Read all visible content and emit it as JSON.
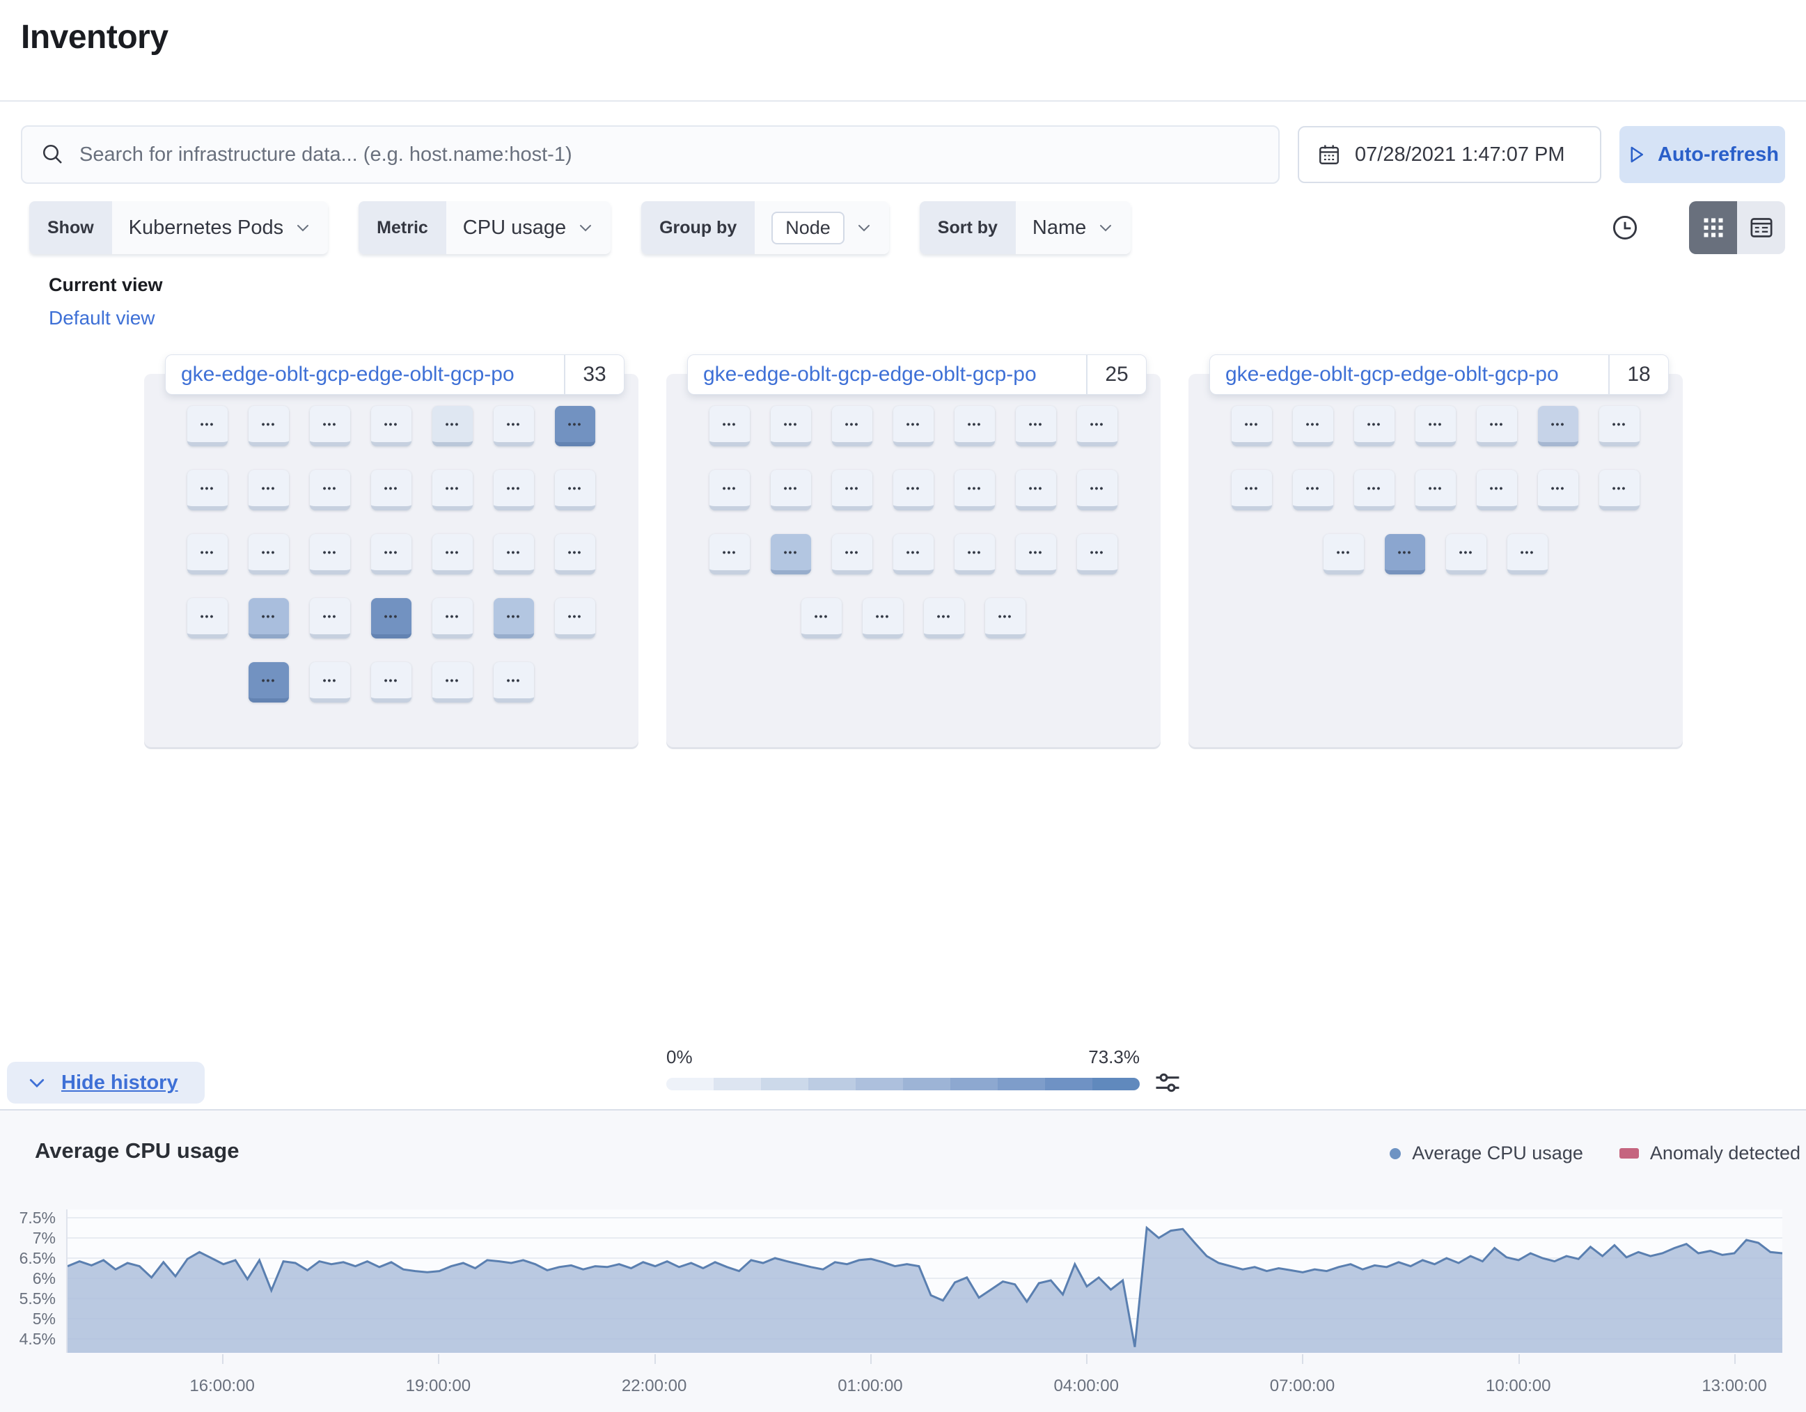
{
  "page": {
    "title": "Inventory"
  },
  "search": {
    "placeholder": "Search for infrastructure data... (e.g. host.name:host-1)"
  },
  "datepicker": {
    "value": "07/28/2021 1:47:07 PM"
  },
  "auto_refresh": {
    "label": "Auto-refresh"
  },
  "filters": [
    {
      "label": "Show",
      "value": "Kubernetes Pods",
      "badge": false
    },
    {
      "label": "Metric",
      "value": "CPU usage",
      "badge": false
    },
    {
      "label": "Group by",
      "value": "Node",
      "badge": true
    },
    {
      "label": "Sort by",
      "value": "Name",
      "badge": false
    }
  ],
  "view": {
    "heading": "Current view",
    "link": "Default view"
  },
  "waffle": {
    "tile_label": "•••",
    "palette": [
      "#eef2f9",
      "#dfe7f2",
      "#c6d3e8",
      "#b3c6e1",
      "#a9bedd",
      "#8ba6cf",
      "#7292c1"
    ],
    "groups": [
      {
        "name": "gke-edge-oblt-gcp-edge-oblt-gcp-po",
        "count": "33",
        "rows": [
          {
            "offset": 0,
            "tiles": [
              0,
              0,
              0,
              0,
              1,
              0,
              6
            ]
          },
          {
            "offset": 0,
            "tiles": [
              0,
              0,
              0,
              0,
              0,
              0,
              0
            ]
          },
          {
            "offset": 0,
            "tiles": [
              0,
              0,
              0,
              0,
              0,
              0,
              0
            ]
          },
          {
            "offset": 0,
            "tiles": [
              0,
              4,
              0,
              6,
              0,
              3,
              0
            ]
          },
          {
            "offset": 1,
            "tiles": [
              6,
              0,
              0,
              0,
              0
            ]
          }
        ]
      },
      {
        "name": "gke-edge-oblt-gcp-edge-oblt-gcp-po",
        "count": "25",
        "rows": [
          {
            "offset": 0,
            "tiles": [
              0,
              0,
              0,
              0,
              0,
              0,
              0
            ]
          },
          {
            "offset": 0,
            "tiles": [
              0,
              0,
              0,
              0,
              0,
              0,
              0
            ]
          },
          {
            "offset": 0,
            "tiles": [
              0,
              3,
              0,
              0,
              0,
              0,
              0
            ]
          },
          {
            "offset": 1.5,
            "tiles": [
              0,
              0,
              0,
              0
            ]
          }
        ]
      },
      {
        "name": "gke-edge-oblt-gcp-edge-oblt-gcp-po",
        "count": "18",
        "rows": [
          {
            "offset": 0,
            "tiles": [
              0,
              0,
              0,
              0,
              0,
              2,
              0
            ]
          },
          {
            "offset": 0,
            "tiles": [
              0,
              0,
              0,
              0,
              0,
              0,
              0
            ]
          },
          {
            "offset": 1.5,
            "tiles": [
              0,
              5,
              0,
              0
            ]
          }
        ]
      }
    ]
  },
  "gradient_legend": {
    "min": "0%",
    "max": "73.3%",
    "steps": [
      "#eef2f9",
      "#dde5f1",
      "#ccd9ea",
      "#bccce3",
      "#adc0dd",
      "#9db4d6",
      "#8da8d0",
      "#7e9dca",
      "#6f92c4",
      "#6089bd"
    ]
  },
  "hide_history": {
    "label": "Hide history"
  },
  "history": {
    "title": "Average CPU usage"
  },
  "chart_data": {
    "type": "area",
    "title": "Average CPU usage",
    "xlabel": "",
    "ylabel": "",
    "ylim": [
      4.155,
      7.707
    ],
    "grid": true,
    "legend_position": "top-right",
    "yticks": {
      "labels": [
        "7.5%",
        "7%",
        "6.5%",
        "6%",
        "5.5%",
        "5%",
        "4.5%"
      ],
      "values": [
        7.5,
        7.0,
        6.5,
        6.0,
        5.5,
        5.0,
        4.5
      ]
    },
    "xticks": {
      "labels": [
        "16:00:00",
        "19:00:00",
        "22:00:00",
        "01:00:00",
        "04:00:00",
        "07:00:00",
        "10:00:00",
        "13:00:00"
      ],
      "indices": [
        13,
        31,
        49,
        67,
        85,
        103,
        121,
        139
      ]
    },
    "legend": [
      {
        "label": "Average CPU usage",
        "color": "#6e93c3",
        "shape": "dot"
      },
      {
        "label": "Anomaly detected",
        "color": "#c5657f",
        "shape": "rect"
      }
    ],
    "series": [
      {
        "name": "Average CPU usage",
        "line_color": "#5a7fb0",
        "fill_color": "#aec0dc",
        "values": [
          6.3,
          6.42,
          6.32,
          6.45,
          6.22,
          6.38,
          6.3,
          6.02,
          6.4,
          6.05,
          6.48,
          6.65,
          6.5,
          6.35,
          6.45,
          5.98,
          6.45,
          5.7,
          6.42,
          6.38,
          6.2,
          6.42,
          6.35,
          6.4,
          6.3,
          6.42,
          6.28,
          6.4,
          6.22,
          6.18,
          6.15,
          6.18,
          6.3,
          6.38,
          6.25,
          6.45,
          6.42,
          6.38,
          6.45,
          6.35,
          6.2,
          6.28,
          6.32,
          6.22,
          6.3,
          6.28,
          6.35,
          6.25,
          6.4,
          6.3,
          6.42,
          6.28,
          6.38,
          6.25,
          6.4,
          6.28,
          6.18,
          6.45,
          6.38,
          6.5,
          6.42,
          6.35,
          6.28,
          6.22,
          6.4,
          6.35,
          6.45,
          6.48,
          6.4,
          6.3,
          6.35,
          6.3,
          5.58,
          5.45,
          5.9,
          6.02,
          5.52,
          5.72,
          5.92,
          5.85,
          5.42,
          5.88,
          5.95,
          5.6,
          6.35,
          5.8,
          6.02,
          5.72,
          5.95,
          4.3,
          7.25,
          7.0,
          7.18,
          7.22,
          6.88,
          6.55,
          6.38,
          6.3,
          6.22,
          6.28,
          6.18,
          6.25,
          6.2,
          6.15,
          6.22,
          6.18,
          6.28,
          6.35,
          6.22,
          6.32,
          6.28,
          6.4,
          6.3,
          6.45,
          6.35,
          6.5,
          6.38,
          6.55,
          6.42,
          6.75,
          6.52,
          6.45,
          6.62,
          6.5,
          6.42,
          6.55,
          6.48,
          6.78,
          6.55,
          6.82,
          6.52,
          6.65,
          6.55,
          6.62,
          6.75,
          6.85,
          6.62,
          6.68,
          6.58,
          6.62,
          6.95,
          6.88,
          6.65,
          6.62
        ]
      }
    ]
  }
}
